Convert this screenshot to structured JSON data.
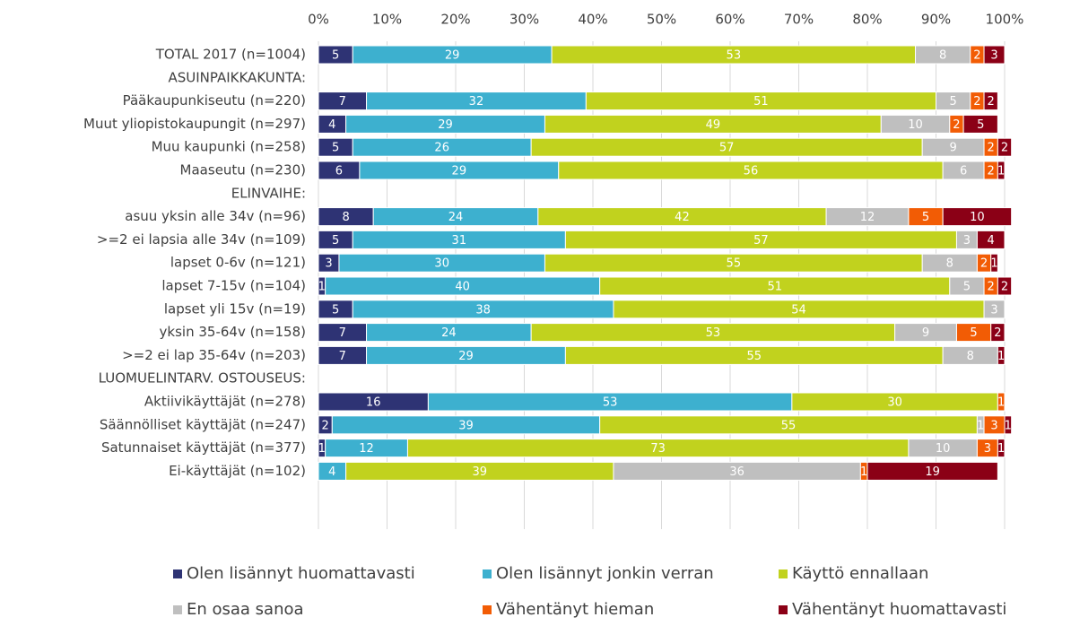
{
  "chart_data": {
    "type": "stacked-bar-horizontal",
    "categories": [
      "TOTAL 2017 (n=1004)",
      "ASUINPAIKKAKUNTA:",
      "Pääkaupunkiseutu (n=220)",
      "Muut yliopistokaupungit (n=297)",
      "Muu kaupunki (n=258)",
      "Maaseutu (n=230)",
      "ELINVAIHE:",
      "asuu yksin alle 34v (n=96)",
      ">=2 ei lapsia alle 34v (n=109)",
      "lapset 0-6v (n=121)",
      "lapset 7-15v (n=104)",
      "lapset yli 15v (n=19)",
      "yksin 35-64v (n=158)",
      ">=2 ei lap 35-64v (n=203)",
      "LUOMUELINTARV. OSTOUSEUS:",
      "Aktiivikäyttäjät (n=278)",
      "Säännölliset käyttäjät (n=247)",
      "Satunnaiset käyttäjät (n=377)",
      "Ei-käyttäjät (n=102)"
    ],
    "series": [
      {
        "name": "Olen lisännyt huomattavasti",
        "color": "#2e3374",
        "values": [
          5,
          null,
          7,
          4,
          5,
          6,
          null,
          8,
          5,
          3,
          1,
          5,
          7,
          7,
          null,
          16,
          2,
          1,
          0
        ]
      },
      {
        "name": "Olen lisännyt jonkin verran",
        "color": "#3db0cf",
        "values": [
          29,
          null,
          32,
          29,
          26,
          29,
          null,
          24,
          31,
          30,
          40,
          38,
          24,
          29,
          null,
          53,
          39,
          12,
          4
        ]
      },
      {
        "name": "Käyttö ennallaan",
        "color": "#c1d21e",
        "values": [
          53,
          null,
          51,
          49,
          57,
          56,
          null,
          42,
          57,
          55,
          51,
          54,
          53,
          55,
          null,
          30,
          55,
          73,
          39
        ]
      },
      {
        "name": "En osaa sanoa",
        "color": "#bfbfbf",
        "values": [
          8,
          null,
          5,
          10,
          9,
          6,
          null,
          12,
          3,
          8,
          5,
          3,
          9,
          8,
          null,
          0,
          1,
          10,
          36
        ]
      },
      {
        "name": "Vähentänyt hieman",
        "color": "#f25c05",
        "values": [
          2,
          null,
          2,
          2,
          2,
          2,
          null,
          5,
          0,
          2,
          2,
          0,
          5,
          0,
          null,
          1,
          3,
          3,
          1
        ]
      },
      {
        "name": "Vähentänyt huomattavasti",
        "color": "#8b0016",
        "values": [
          3,
          null,
          2,
          5,
          2,
          1,
          null,
          10,
          4,
          1,
          2,
          0,
          2,
          1,
          null,
          0,
          1,
          1,
          19
        ]
      }
    ],
    "xlim": [
      0,
      100
    ],
    "xticks": [
      {
        "value": 0,
        "label": "0%"
      },
      {
        "value": 10,
        "label": "10%"
      },
      {
        "value": 20,
        "label": "20%"
      },
      {
        "value": 30,
        "label": "30%"
      },
      {
        "value": 40,
        "label": "40%"
      },
      {
        "value": 50,
        "label": "50%"
      },
      {
        "value": 60,
        "label": "60%"
      },
      {
        "value": 70,
        "label": "70%"
      },
      {
        "value": 80,
        "label": "80%"
      },
      {
        "value": 90,
        "label": "90%"
      },
      {
        "value": 100,
        "label": "100%"
      }
    ],
    "grid": true,
    "legend": "bottom"
  }
}
